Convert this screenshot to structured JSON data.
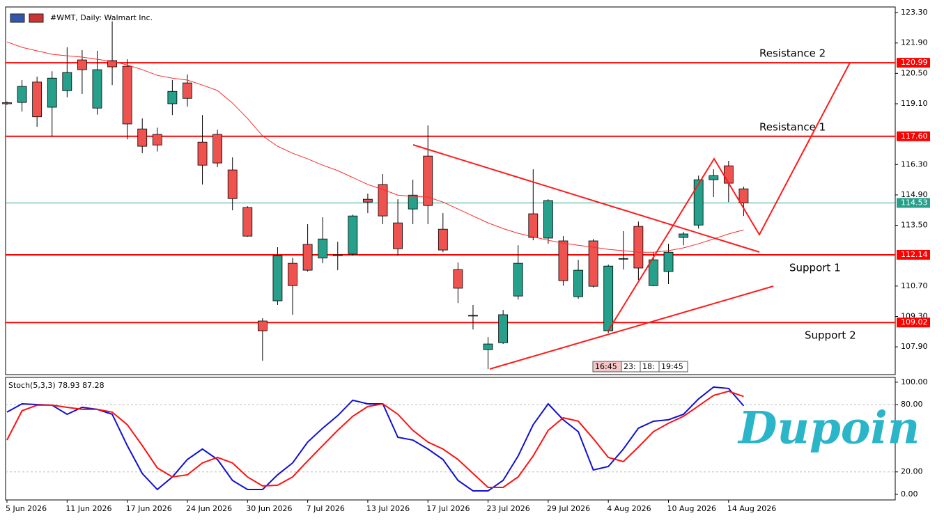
{
  "chart_data": [
    {
      "type": "candlestick",
      "title": "#WMT, Daily: Walmart Inc.",
      "categories": [
        "5 Jun 2026",
        null,
        null,
        null,
        "11 Jun 2026",
        null,
        null,
        null,
        "17 Jun 2026",
        null,
        null,
        null,
        "24 Jun 2026",
        null,
        null,
        null,
        "30 Jun 2026",
        null,
        null,
        null,
        "7 Jul 2026",
        null,
        null,
        null,
        "13 Jul 2026",
        null,
        null,
        null,
        "17 Jul 2026",
        null,
        null,
        null,
        "23 Jul 2026",
        null,
        null,
        null,
        "29 Jul 2026",
        null,
        null,
        null,
        "4 Aug 2026",
        null,
        null,
        null,
        "10 Aug 2026",
        null,
        null,
        null,
        "14 Aug 2026",
        null
      ],
      "open": [
        119.15,
        119.16,
        120.1,
        118.94,
        119.7,
        121.12,
        118.9,
        121.09,
        120.83,
        117.94,
        117.69,
        119.1,
        120.06,
        117.33,
        117.69,
        116.05,
        114.32,
        109.09,
        110.02,
        111.75,
        112.62,
        111.99,
        112.14,
        112.17,
        114.7,
        115.38,
        113.61,
        114.25,
        116.69,
        113.32,
        111.46,
        109.35,
        107.77,
        108.09,
        110.24,
        114.03,
        112.91,
        112.78,
        110.21,
        112.78,
        108.64,
        111.94,
        113.45,
        110.72,
        111.37,
        112.94,
        113.51,
        115.6,
        116.24,
        115.18
      ],
      "high": [
        119.2,
        120.19,
        120.35,
        120.6,
        121.7,
        121.57,
        121.54,
        122.9,
        121.15,
        118.42,
        118.0,
        120.19,
        120.45,
        118.58,
        117.9,
        116.63,
        114.38,
        109.22,
        112.49,
        112.0,
        113.55,
        113.87,
        112.74,
        113.99,
        114.96,
        115.86,
        114.7,
        115.6,
        118.1,
        114.06,
        111.78,
        109.83,
        108.35,
        109.6,
        112.58,
        116.08,
        114.7,
        113.0,
        111.91,
        112.87,
        111.69,
        113.23,
        113.67,
        112.26,
        112.65,
        113.2,
        115.79,
        116.08,
        116.47,
        115.28
      ],
      "low": [
        119.05,
        118.74,
        118.04,
        117.6,
        119.4,
        119.55,
        118.6,
        119.96,
        117.46,
        116.82,
        116.9,
        118.58,
        118.97,
        115.38,
        116.18,
        114.19,
        112.97,
        107.26,
        109.83,
        109.38,
        111.37,
        111.75,
        111.43,
        112.1,
        114.06,
        113.55,
        112.1,
        113.55,
        113.55,
        112.26,
        109.92,
        108.7,
        106.87,
        108.03,
        110.08,
        112.81,
        112.65,
        110.72,
        110.11,
        110.63,
        108.54,
        111.46,
        110.98,
        110.69,
        110.79,
        112.58,
        113.35,
        114.8,
        114.57,
        113.93
      ],
      "close": [
        119.1,
        119.9,
        118.5,
        120.28,
        120.54,
        120.67,
        120.67,
        120.8,
        118.17,
        117.14,
        117.2,
        119.67,
        119.35,
        116.27,
        116.37,
        114.73,
        113.0,
        108.64,
        112.1,
        110.72,
        111.43,
        112.87,
        112.1,
        113.93,
        114.57,
        113.93,
        112.42,
        114.89,
        114.41,
        112.36,
        110.6,
        109.32,
        108.03,
        109.38,
        111.75,
        112.94,
        114.64,
        110.95,
        111.43,
        110.69,
        111.62,
        111.97,
        111.53,
        111.91,
        112.26,
        113.1,
        115.6,
        115.79,
        115.44,
        114.53
      ],
      "up_color": "#26a08a",
      "down_color": "#ef5350",
      "ma": {
        "color": "#ff2a2a",
        "values": [
          121.95,
          121.7,
          121.54,
          121.38,
          121.31,
          121.25,
          121.15,
          121.05,
          120.89,
          120.67,
          120.41,
          120.28,
          120.19,
          119.96,
          119.71,
          119.13,
          118.42,
          117.62,
          117.14,
          116.82,
          116.56,
          116.27,
          116.02,
          115.7,
          115.38,
          115.15,
          114.89,
          114.83,
          114.8,
          114.57,
          114.25,
          113.93,
          113.61,
          113.35,
          113.13,
          112.97,
          112.81,
          112.68,
          112.58,
          112.49,
          112.39,
          112.33,
          112.26,
          112.26,
          112.33,
          112.46,
          112.65,
          112.87,
          113.1,
          113.29
        ]
      },
      "levels": [
        {
          "name": "Resistance 2",
          "price": {
            "value": 120.99,
            "label": "120.99"
          }
        },
        {
          "name": "Resistance 1",
          "price": {
            "value": 117.6,
            "label": "117.60"
          }
        },
        {
          "name": "Support 1",
          "price": {
            "value": 112.14,
            "label": "112.14"
          }
        },
        {
          "name": "Support 2",
          "price": {
            "value": 109.02,
            "label": "109.02"
          }
        }
      ],
      "level_color": "#ff0000",
      "current_price": {
        "value": 114.53,
        "label": "114.53"
      },
      "current_color": "#26a08a",
      "ylim": [
        106.62,
        123.56
      ],
      "yticks": [
        {
          "value": 123.3,
          "label": "123.30"
        },
        {
          "value": 121.9,
          "label": "121.90"
        },
        {
          "value": 120.5,
          "label": "120.50"
        },
        {
          "value": 119.1,
          "label": "119.10"
        },
        {
          "value": 116.3,
          "label": "116.30"
        },
        {
          "value": 114.9,
          "label": "114.90"
        },
        {
          "value": 113.5,
          "label": "113.50"
        },
        {
          "value": 110.7,
          "label": "110.70"
        },
        {
          "value": 109.3,
          "label": "109.30"
        },
        {
          "value": 107.9,
          "label": "107.90"
        }
      ],
      "time_boxes": [
        "16:45",
        "23:",
        "18:",
        "19:45"
      ]
    },
    {
      "type": "line",
      "title": "Stoch(5,3,3)",
      "series": [
        {
          "color": "#1010d0",
          "values": [
            73.3,
            80.7,
            80.1,
            79.5,
            71.4,
            77.6,
            75.8,
            71.4,
            43.5,
            18.6,
            4.3,
            15.5,
            31.1,
            40.4,
            31.1,
            12.4,
            4.3,
            4.3,
            17.4,
            28.0,
            46.6,
            59.0,
            70.2,
            83.9,
            80.7,
            80.7,
            50.9,
            48.4,
            40.4,
            31.1,
            12.4,
            3.1,
            3.1,
            12.4,
            34.2,
            62.1,
            80.7,
            66.5,
            55.9,
            21.7,
            24.8,
            40.4,
            59.0,
            65.2,
            66.5,
            71.4,
            85.1,
            95.7,
            94.4,
            78.93
          ]
        },
        {
          "color": "#ff1010",
          "values": [
            48.4,
            74.5,
            79.5,
            79.5,
            77.6,
            75.8,
            75.8,
            73.3,
            62.1,
            43.5,
            23.6,
            15.5,
            17.4,
            28.0,
            32.9,
            28.0,
            15.5,
            7.5,
            8.1,
            15.5,
            29.8,
            43.5,
            57.1,
            69.6,
            78.3,
            80.7,
            71.4,
            57.1,
            46.6,
            40.4,
            31.1,
            18.6,
            6.2,
            6.2,
            15.5,
            34.2,
            57.1,
            68.3,
            65.2,
            49.7,
            32.9,
            29.2,
            42.2,
            55.9,
            63.4,
            69.6,
            78.9,
            88.2,
            91.9,
            87.28
          ]
        }
      ],
      "ylim": [
        -5,
        104.3
      ],
      "yticks": [
        {
          "value": 100,
          "label": "100.00"
        },
        {
          "value": 80,
          "label": "80.00"
        },
        {
          "value": 20,
          "label": "20.00"
        },
        {
          "value": 0,
          "label": "0.00"
        }
      ]
    },
    {
      "watermark": "Dupoin"
    }
  ]
}
